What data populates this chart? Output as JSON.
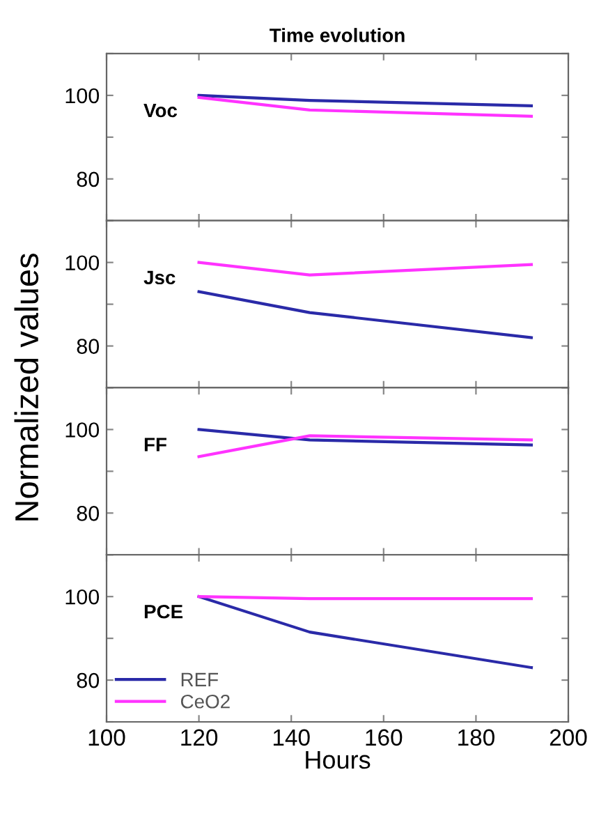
{
  "chart_data": [
    {
      "type": "line",
      "title": "Time evolution",
      "ylabel": "Normalized values",
      "annotations": [
        "Voc"
      ],
      "x": [
        120,
        144,
        192
      ],
      "xlim": [
        100,
        200
      ],
      "xticks": [
        {
          "value": 100,
          "label": null
        },
        {
          "value": 120,
          "label": null
        },
        {
          "value": 140,
          "label": null
        },
        {
          "value": 160,
          "label": null
        },
        {
          "value": 180,
          "label": null
        },
        {
          "value": 200,
          "label": null
        }
      ],
      "ylim": [
        70,
        110
      ],
      "yticks": [
        {
          "value": 70,
          "label": null
        },
        80,
        {
          "value": 90,
          "label": null
        },
        100,
        {
          "value": 110,
          "label": null
        }
      ],
      "tick_labels": "y",
      "grid": false,
      "series": [
        {
          "color": "#2a2aa8",
          "values": [
            100,
            98.8,
            97.5
          ]
        },
        {
          "color": "#ff33ff",
          "values": [
            99.5,
            96.5,
            95
          ]
        }
      ]
    },
    {
      "type": "line",
      "annotations": [
        "Jsc"
      ],
      "x": [
        120,
        144,
        192
      ],
      "xlim": [
        100,
        200
      ],
      "xticks": [
        {
          "value": 100,
          "label": null
        },
        {
          "value": 120,
          "label": null
        },
        {
          "value": 140,
          "label": null
        },
        {
          "value": 160,
          "label": null
        },
        {
          "value": 180,
          "label": null
        },
        {
          "value": 200,
          "label": null
        }
      ],
      "ylim": [
        70,
        110
      ],
      "yticks": [
        {
          "value": 70,
          "label": null
        },
        80,
        {
          "value": 90,
          "label": null
        },
        100,
        {
          "value": 110,
          "label": null
        }
      ],
      "tick_labels": "y",
      "grid": false,
      "series": [
        {
          "color": "#2a2aa8",
          "values": [
            93,
            88,
            82
          ]
        },
        {
          "color": "#ff33ff",
          "values": [
            100,
            97,
            99.5
          ]
        }
      ]
    },
    {
      "type": "line",
      "annotations": [
        "FF"
      ],
      "x": [
        120,
        144,
        192
      ],
      "xlim": [
        100,
        200
      ],
      "xticks": [
        {
          "value": 100,
          "label": null
        },
        {
          "value": 120,
          "label": null
        },
        {
          "value": 140,
          "label": null
        },
        {
          "value": 160,
          "label": null
        },
        {
          "value": 180,
          "label": null
        },
        {
          "value": 200,
          "label": null
        }
      ],
      "ylim": [
        70,
        110
      ],
      "yticks": [
        {
          "value": 70,
          "label": null
        },
        80,
        {
          "value": 90,
          "label": null
        },
        100,
        {
          "value": 110,
          "label": null
        }
      ],
      "tick_labels": "y",
      "grid": false,
      "series": [
        {
          "color": "#2a2aa8",
          "values": [
            100,
            97.5,
            96.3
          ]
        },
        {
          "color": "#ff33ff",
          "values": [
            93.5,
            98.5,
            97.5
          ]
        }
      ]
    },
    {
      "type": "line",
      "xlabel": "Hours",
      "annotations": [
        "PCE"
      ],
      "x": [
        120,
        144,
        192
      ],
      "xlim": [
        100,
        200
      ],
      "xticks": [
        100,
        120,
        140,
        160,
        180,
        200
      ],
      "ylim": [
        70,
        110
      ],
      "yticks": [
        {
          "value": 70,
          "label": null
        },
        80,
        {
          "value": 90,
          "label": null
        },
        100,
        {
          "value": 110,
          "label": null
        }
      ],
      "grid": false,
      "legend": "bottom left",
      "series": [
        {
          "name": "REF",
          "color": "#2a2aa8",
          "values": [
            100,
            91.5,
            83
          ]
        },
        {
          "name": "CeO2",
          "color": "#ff33ff",
          "values": [
            100,
            99.5,
            99.5
          ]
        }
      ]
    }
  ]
}
